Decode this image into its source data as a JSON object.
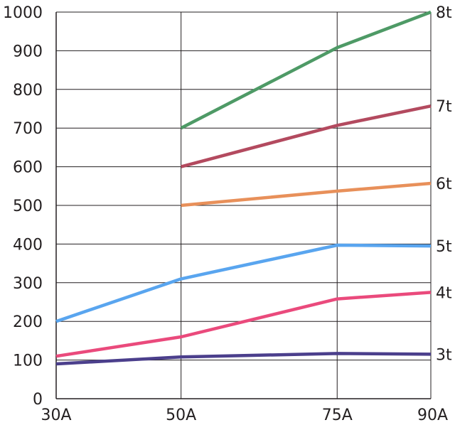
{
  "chart_data": {
    "type": "line",
    "x": [
      "30A",
      "50A",
      "75A",
      "90A"
    ],
    "x_values": [
      30,
      50,
      75,
      90
    ],
    "xlim": [
      30,
      90
    ],
    "ylim": [
      0,
      1000
    ],
    "yticks": [
      0,
      100,
      200,
      300,
      400,
      500,
      600,
      700,
      800,
      900,
      1000
    ],
    "grid": true,
    "title": "",
    "xlabel": "",
    "ylabel": "",
    "series": [
      {
        "name": "3t",
        "color": "#4b3f8c",
        "values": [
          90,
          108,
          117,
          115
        ]
      },
      {
        "name": "4t",
        "color": "#ea4a7c",
        "values": [
          110,
          160,
          258,
          275
        ]
      },
      {
        "name": "5t",
        "color": "#59a5ef",
        "values": [
          200,
          310,
          397,
          395
        ]
      },
      {
        "name": "6t",
        "color": "#e8905a",
        "values": [
          null,
          500,
          537,
          557
        ]
      },
      {
        "name": "7t",
        "color": "#b34a5f",
        "values": [
          null,
          600,
          707,
          757
        ]
      },
      {
        "name": "8t",
        "color": "#4e9a66",
        "values": [
          null,
          700,
          908,
          1000
        ]
      }
    ]
  }
}
